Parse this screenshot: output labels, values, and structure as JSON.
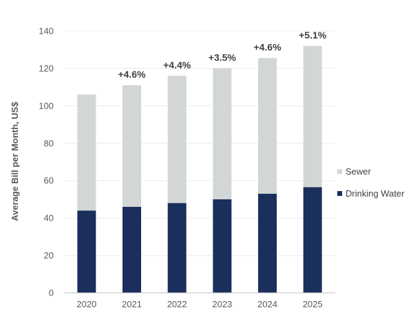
{
  "chart_data": {
    "type": "bar",
    "stacked": true,
    "categories": [
      "2020",
      "2021",
      "2022",
      "2023",
      "2024",
      "2025"
    ],
    "series": [
      {
        "name": "Drinking Water",
        "values": [
          44,
          46,
          48,
          50,
          53,
          56.5
        ]
      },
      {
        "name": "Sewer",
        "values": [
          62,
          65,
          68,
          70,
          72.5,
          75.5
        ]
      }
    ],
    "growth_labels": [
      "",
      "+4.6%",
      "+4.4%",
      "+3.5%",
      "+4.6%",
      "+5.1%"
    ],
    "title": "",
    "xlabel": "",
    "ylabel": "Average Bill per Month, US$",
    "ylim": [
      0,
      140
    ],
    "yticks": [
      0,
      20,
      40,
      60,
      80,
      100,
      120,
      140
    ],
    "grid": true,
    "legend_position": "right",
    "legend_order": [
      "Sewer",
      "Drinking Water"
    ],
    "colors": {
      "Drinking Water": "#1b2f5c",
      "Sewer": "#d3d6d6"
    }
  }
}
